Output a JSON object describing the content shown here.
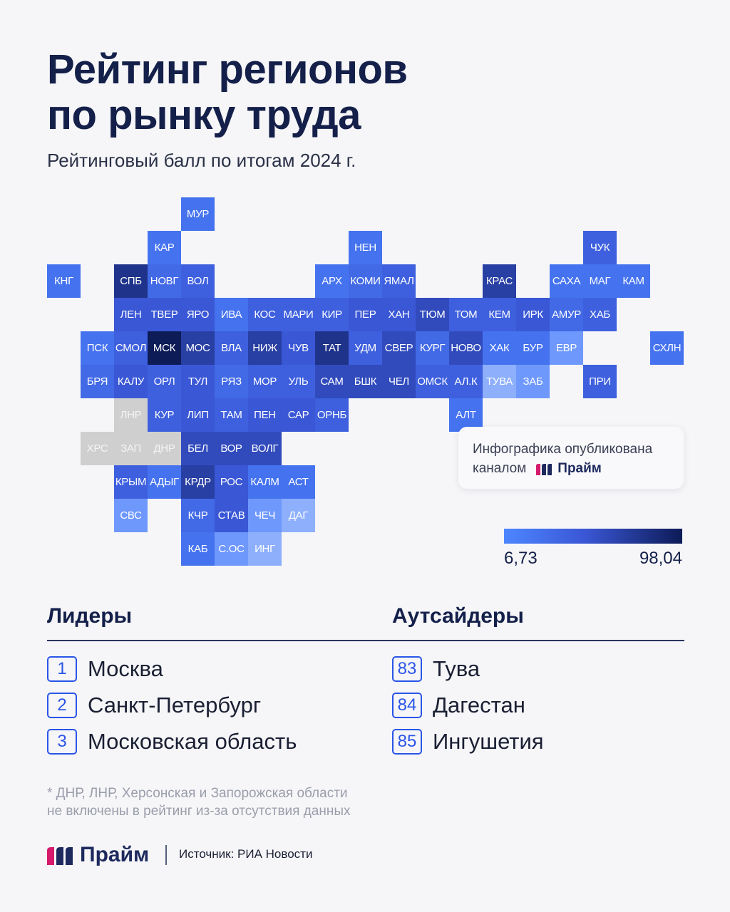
{
  "header": {
    "title_line1": "Рейтинг регионов",
    "title_line2": "по рынку труда",
    "subtitle": "Рейтинговый балл по итогам 2024 г."
  },
  "colors": {
    "lightest": "#4d86ff",
    "darkest": "#0d1b57",
    "no_data": "#cfcfcf",
    "accent": "#2a55e8",
    "brand_magenta": "#d6196b",
    "brand_navy": "#1e2a5e"
  },
  "map": {
    "scale_min_label": "6,73",
    "scale_max_label": "98,04",
    "rows": [
      [
        [
          4,
          "МУР",
          2
        ]
      ],
      [
        [
          3,
          "КАР",
          2
        ],
        [
          9,
          "НЕН",
          2
        ],
        [
          16,
          "ЧУК",
          4
        ]
      ],
      [
        [
          0,
          "КНГ",
          2
        ],
        [
          2,
          "СПБ",
          8
        ],
        [
          3,
          "НОВГ",
          3
        ],
        [
          4,
          "ВОЛ",
          4
        ],
        [
          8,
          "АРХ",
          2
        ],
        [
          9,
          "КОМИ",
          3
        ],
        [
          10,
          "ЯМАЛ",
          4
        ],
        [
          13,
          "КРАС",
          7
        ],
        [
          15,
          "САХА",
          2
        ],
        [
          16,
          "МАГ",
          2
        ],
        [
          17,
          "КАМ",
          2
        ]
      ],
      [
        [
          2,
          "ЛЕН",
          5
        ],
        [
          3,
          "ТВЕР",
          5
        ],
        [
          4,
          "ЯРО",
          5
        ],
        [
          5,
          "ИВА",
          2
        ],
        [
          6,
          "КОС",
          4
        ],
        [
          7,
          "МАРИ",
          4
        ],
        [
          8,
          "КИР",
          4
        ],
        [
          9,
          "ПЕР",
          5
        ],
        [
          10,
          "ХАН",
          5
        ],
        [
          11,
          "ТЮМ",
          6
        ],
        [
          12,
          "ТОМ",
          4
        ],
        [
          13,
          "КЕМ",
          4
        ],
        [
          14,
          "ИРК",
          5
        ],
        [
          15,
          "АМУР",
          3
        ],
        [
          16,
          "ХАБ",
          4
        ]
      ],
      [
        [
          1,
          "ПСК",
          2
        ],
        [
          2,
          "СМОЛ",
          4
        ],
        [
          3,
          "МСК",
          10
        ],
        [
          4,
          "МОС",
          7
        ],
        [
          5,
          "ВЛА",
          4
        ],
        [
          6,
          "НИЖ",
          7
        ],
        [
          7,
          "ЧУВ",
          5
        ],
        [
          8,
          "ТАТ",
          8
        ],
        [
          9,
          "УДМ",
          4
        ],
        [
          10,
          "СВЕР",
          6
        ],
        [
          11,
          "КУРГ",
          3
        ],
        [
          12,
          "НОВО",
          6
        ],
        [
          13,
          "ХАК",
          2
        ],
        [
          14,
          "БУР",
          2
        ],
        [
          15,
          "ЕВР",
          1
        ],
        [
          18,
          "СХЛН",
          2
        ]
      ],
      [
        [
          1,
          "БРЯ",
          3
        ],
        [
          2,
          "КАЛУ",
          5
        ],
        [
          3,
          "ОРЛ",
          4
        ],
        [
          4,
          "ТУЛ",
          5
        ],
        [
          5,
          "РЯЗ",
          3
        ],
        [
          6,
          "МОР",
          4
        ],
        [
          7,
          "УЛЬ",
          4
        ],
        [
          8,
          "САМ",
          6
        ],
        [
          9,
          "БШК",
          6
        ],
        [
          10,
          "ЧЕЛ",
          6
        ],
        [
          11,
          "ОМСК",
          4
        ],
        [
          12,
          "АЛ.К",
          4
        ],
        [
          13,
          "ТУВА",
          0
        ],
        [
          14,
          "ЗАБ",
          1
        ],
        [
          16,
          "ПРИ",
          4
        ]
      ],
      [
        [
          2,
          "ЛНР",
          -1
        ],
        [
          3,
          "КУР",
          4
        ],
        [
          4,
          "ЛИП",
          5
        ],
        [
          5,
          "ТАМ",
          4
        ],
        [
          6,
          "ПЕН",
          5
        ],
        [
          7,
          "САР",
          5
        ],
        [
          8,
          "ОРНБ",
          4
        ],
        [
          12,
          "АЛТ",
          2
        ]
      ],
      [
        [
          1,
          "ХРС",
          -1
        ],
        [
          2,
          "ЗАП",
          -1
        ],
        [
          3,
          "ДНР",
          -1
        ],
        [
          4,
          "БЕЛ",
          6
        ],
        [
          5,
          "ВОР",
          6
        ],
        [
          6,
          "ВОЛГ",
          6
        ]
      ],
      [
        [
          2,
          "КРЫМ",
          4
        ],
        [
          3,
          "АДЫГ",
          2
        ],
        [
          4,
          "КРДР",
          7
        ],
        [
          5,
          "РОС",
          5
        ],
        [
          6,
          "КАЛМ",
          2
        ],
        [
          7,
          "АСТ",
          2
        ]
      ],
      [
        [
          2,
          "СВС",
          1
        ],
        [
          4,
          "КЧР",
          3
        ],
        [
          5,
          "СТАВ",
          5
        ],
        [
          6,
          "ЧЕЧ",
          1
        ],
        [
          7,
          "ДАГ",
          0
        ]
      ],
      [
        [
          4,
          "КАБ",
          2
        ],
        [
          5,
          "С.ОС",
          1
        ],
        [
          6,
          "ИНГ",
          0
        ]
      ]
    ]
  },
  "badge": {
    "line1": "Инфографика опубликована",
    "line2_prefix": "каналом",
    "brand": "Прайм"
  },
  "leaders": {
    "heading": "Лидеры",
    "items": [
      {
        "rank": "1",
        "name": "Москва"
      },
      {
        "rank": "2",
        "name": "Санкт-Петербург"
      },
      {
        "rank": "3",
        "name": "Московская область"
      }
    ]
  },
  "outsiders": {
    "heading": "Аутсайдеры",
    "items": [
      {
        "rank": "83",
        "name": "Тува"
      },
      {
        "rank": "84",
        "name": "Дагестан"
      },
      {
        "rank": "85",
        "name": "Ингушетия"
      }
    ]
  },
  "footnote": {
    "line1": "* ДНР, ЛНР, Херсонская и Запорожская области",
    "line2": "не включены в рейтинг из-за отсутствия данных"
  },
  "footer": {
    "brand": "Прайм",
    "source": "Источник: РИА Новости"
  }
}
